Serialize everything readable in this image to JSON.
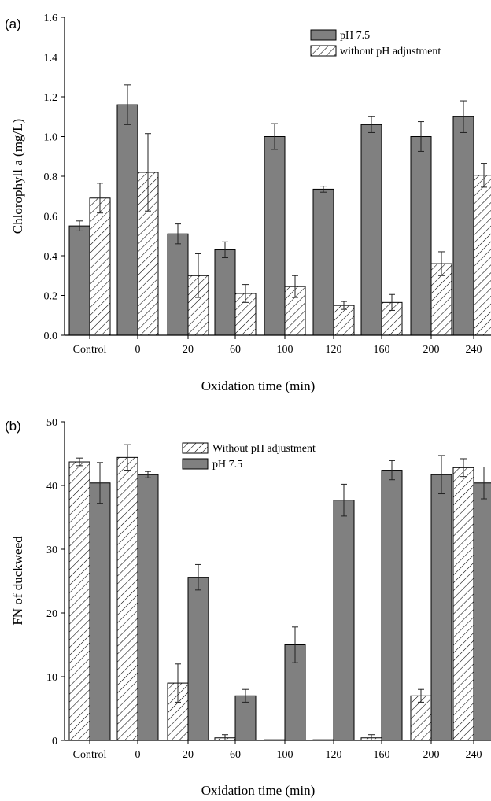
{
  "chart_data": [
    {
      "type": "bar",
      "panel_label": "(a)",
      "title": "",
      "xlabel": "Oxidation time (min)",
      "ylabel": "Chlorophyll a (mg/L)",
      "ylim": [
        0,
        1.6
      ],
      "yticks": [
        "0.0",
        "0.2",
        "0.4",
        "0.6",
        "0.8",
        "1.0",
        "1.2",
        "1.4",
        "1.6"
      ],
      "categories": [
        "Control",
        "0",
        "20",
        "60",
        "100",
        "120",
        "160",
        "200",
        "240"
      ],
      "series_order": [
        "pH 7.5",
        "without pH adjustment"
      ],
      "series": [
        {
          "name": "pH 7.5",
          "style": "solid",
          "color": "#808080",
          "values": [
            0.55,
            1.16,
            0.51,
            0.43,
            1.0,
            0.735,
            1.06,
            1.0,
            1.1
          ],
          "errors": [
            0.025,
            0.1,
            0.05,
            0.04,
            0.065,
            0.015,
            0.04,
            0.075,
            0.08
          ]
        },
        {
          "name": "without pH adjustment",
          "style": "hatched",
          "color": "#ffffff",
          "values": [
            0.69,
            0.82,
            0.3,
            0.21,
            0.245,
            0.15,
            0.165,
            0.36,
            0.805
          ],
          "errors": [
            0.075,
            0.195,
            0.11,
            0.045,
            0.055,
            0.02,
            0.04,
            0.06,
            0.06
          ]
        }
      ],
      "legend": {
        "position": "top-right",
        "entries": [
          "pH 7.5",
          "without pH adjustment"
        ]
      },
      "grid": false
    },
    {
      "type": "bar",
      "panel_label": "(b)",
      "title": "",
      "xlabel": "Oxidation time (min)",
      "ylabel": "FN of duckweed",
      "ylim": [
        0,
        50
      ],
      "yticks": [
        "0",
        "10",
        "20",
        "30",
        "40",
        "50"
      ],
      "categories": [
        "Control",
        "0",
        "20",
        "60",
        "100",
        "120",
        "160",
        "200",
        "240"
      ],
      "series_order": [
        "Without pH adjustment",
        "pH 7.5"
      ],
      "series": [
        {
          "name": "Without pH adjustment",
          "style": "hatched",
          "color": "#ffffff",
          "values": [
            43.7,
            44.4,
            9.0,
            0.4,
            0.1,
            0.1,
            0.4,
            7.0,
            42.8
          ],
          "errors": [
            0.6,
            2.0,
            3.0,
            0.5,
            0.0,
            0.0,
            0.5,
            1.0,
            1.4
          ]
        },
        {
          "name": "pH 7.5",
          "style": "solid",
          "color": "#808080",
          "values": [
            40.4,
            41.7,
            25.6,
            7.0,
            15.0,
            37.7,
            42.4,
            41.7,
            40.4
          ],
          "errors": [
            3.2,
            0.5,
            2.0,
            1.0,
            2.8,
            2.5,
            1.5,
            3.0,
            2.5
          ]
        }
      ],
      "legend": {
        "position": "top-center",
        "entries": [
          "Without pH adjustment",
          "pH 7.5"
        ]
      },
      "grid": false
    }
  ]
}
